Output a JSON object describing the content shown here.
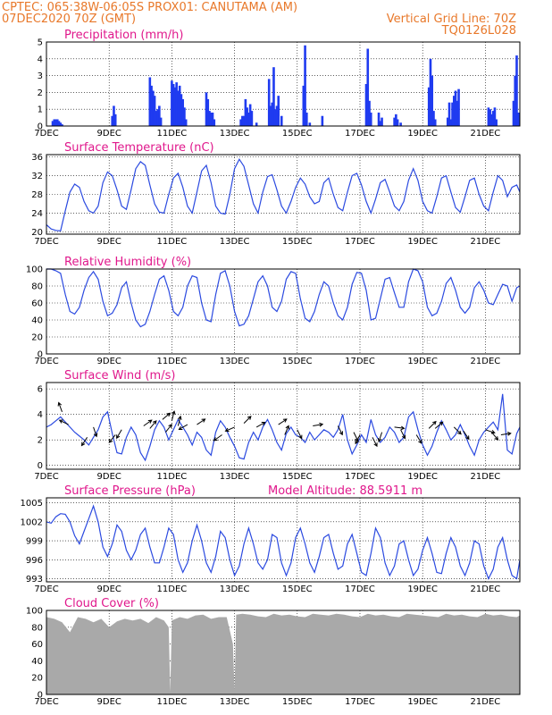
{
  "header": {
    "line1_left": "CPTEC:   065:38W-06:05S   PROX01: CANUTAMA (AM)",
    "line2_left": "07DEC2020 70Z (GMT)",
    "line2_right": "Vertical Grid Line: 70Z",
    "line3_right": "TQ0126L028",
    "model_altitude": "Model Altitude: 88.5911 m"
  },
  "x_axis": {
    "ticks": [
      "7DEC",
      "9DEC",
      "11DEC",
      "13DEC",
      "15DEC",
      "17DEC",
      "19DEC",
      "21DEC"
    ],
    "tick_days": [
      0,
      2,
      4,
      6,
      8,
      10,
      12,
      14
    ],
    "range_days": [
      0,
      15.1
    ]
  },
  "colors": {
    "header": "#e8782a",
    "panel_title": "#e0188c",
    "series": "#2b4ae0",
    "bars": "#1f3bf0",
    "cloud": "#a9a9a9"
  },
  "chart_data": [
    {
      "type": "bar",
      "title": "Precipitation (mm/h)",
      "ylim": [
        0,
        5
      ],
      "yticks": [
        0,
        1,
        2,
        3,
        4,
        5
      ],
      "grid": true,
      "x_days": [
        0.2,
        0.25,
        0.3,
        0.35,
        0.4,
        0.45,
        0.5,
        2.1,
        2.15,
        2.2,
        3.3,
        3.35,
        3.4,
        3.45,
        3.5,
        3.55,
        3.6,
        3.65,
        4.0,
        4.05,
        4.1,
        4.15,
        4.2,
        4.25,
        4.3,
        4.35,
        4.4,
        4.45,
        5.1,
        5.15,
        5.2,
        5.25,
        5.3,
        5.35,
        6.2,
        6.25,
        6.3,
        6.35,
        6.4,
        6.45,
        6.5,
        6.55,
        6.7,
        7.1,
        7.15,
        7.2,
        7.25,
        7.3,
        7.35,
        7.4,
        7.5,
        8.2,
        8.25,
        8.3,
        8.4,
        8.8,
        10.2,
        10.25,
        10.3,
        10.35,
        10.6,
        10.65,
        10.7,
        11.1,
        11.15,
        11.2,
        11.3,
        12.2,
        12.25,
        12.3,
        12.35,
        12.4,
        12.8,
        12.85,
        12.9,
        12.95,
        13.0,
        13.05,
        13.1,
        13.15,
        14.1,
        14.15,
        14.2,
        14.25,
        14.3,
        14.35,
        14.9,
        14.95,
        15.0,
        15.05
      ],
      "values": [
        0.3,
        0.4,
        0.4,
        0.4,
        0.3,
        0.2,
        0.1,
        0.6,
        1.2,
        0.7,
        2.9,
        2.4,
        2.1,
        1.8,
        0.9,
        1.0,
        1.2,
        0.5,
        2.7,
        2.5,
        2.3,
        2.6,
        2.1,
        2.4,
        1.9,
        1.6,
        1.1,
        0.4,
        2.0,
        1.6,
        0.9,
        0.8,
        0.8,
        0.4,
        0.4,
        0.6,
        0.6,
        1.6,
        1.1,
        0.8,
        1.3,
        0.9,
        0.2,
        2.8,
        1.2,
        1.4,
        3.5,
        1.0,
        1.2,
        1.8,
        0.6,
        2.4,
        4.8,
        0.8,
        0.2,
        0.6,
        2.5,
        4.6,
        1.5,
        0.8,
        0.8,
        0.3,
        0.5,
        0.5,
        0.7,
        0.4,
        0.2,
        2.3,
        4.0,
        3.0,
        0.9,
        0.4,
        0.5,
        1.4,
        0.4,
        1.4,
        1.8,
        2.1,
        1.5,
        2.2,
        1.1,
        1.0,
        0.7,
        0.9,
        1.1,
        0.4,
        1.5,
        3.0,
        4.2,
        0.8
      ]
    },
    {
      "type": "line",
      "title": "Surface Temperature (nC)",
      "ylim": [
        19.5,
        36.5
      ],
      "yticks": [
        20,
        24,
        28,
        32,
        36
      ],
      "grid": true,
      "x": [
        0,
        0.15,
        0.3,
        0.45,
        0.6,
        0.75,
        0.9,
        1.05,
        1.2,
        1.35,
        1.5,
        1.65,
        1.8,
        1.95,
        2.1,
        2.25,
        2.4,
        2.55,
        2.7,
        2.85,
        3.0,
        3.15,
        3.3,
        3.45,
        3.6,
        3.75,
        3.9,
        4.05,
        4.2,
        4.35,
        4.5,
        4.65,
        4.8,
        4.95,
        5.1,
        5.25,
        5.4,
        5.55,
        5.7,
        5.85,
        6.0,
        6.15,
        6.3,
        6.45,
        6.6,
        6.75,
        6.9,
        7.05,
        7.2,
        7.35,
        7.5,
        7.65,
        7.8,
        7.95,
        8.1,
        8.25,
        8.4,
        8.55,
        8.7,
        8.85,
        9.0,
        9.15,
        9.3,
        9.45,
        9.6,
        9.75,
        9.9,
        10.05,
        10.2,
        10.35,
        10.5,
        10.65,
        10.8,
        10.95,
        11.1,
        11.25,
        11.4,
        11.55,
        11.7,
        11.85,
        12.0,
        12.15,
        12.3,
        12.45,
        12.6,
        12.75,
        12.9,
        13.05,
        13.2,
        13.35,
        13.5,
        13.65,
        13.8,
        13.95,
        14.1,
        14.25,
        14.4,
        14.55,
        14.7,
        14.85,
        15.0,
        15.1
      ],
      "values": [
        21.5,
        20.6,
        20.3,
        20.2,
        24.5,
        28.5,
        30.2,
        29.5,
        26.5,
        24.5,
        24.0,
        25.5,
        30.5,
        32.8,
        32.0,
        29.0,
        25.5,
        24.8,
        29.0,
        33.5,
        35.0,
        34.2,
        30.0,
        26.0,
        24.2,
        24.0,
        28.0,
        31.5,
        32.5,
        29.5,
        25.5,
        24.0,
        28.5,
        33.0,
        34.2,
        30.5,
        25.5,
        24.0,
        23.8,
        28.0,
        33.5,
        35.5,
        34.0,
        30.0,
        26.0,
        24.0,
        28.5,
        31.8,
        32.2,
        29.0,
        25.5,
        24.0,
        26.5,
        29.5,
        31.5,
        30.2,
        27.5,
        26.0,
        26.5,
        30.5,
        31.5,
        28.0,
        25.2,
        24.5,
        28.5,
        32.0,
        32.5,
        30.0,
        26.5,
        24.0,
        27.0,
        30.5,
        31.2,
        28.5,
        25.5,
        24.5,
        26.5,
        31.0,
        33.5,
        31.0,
        26.5,
        24.5,
        24.0,
        27.5,
        31.5,
        32.0,
        28.5,
        25.2,
        24.2,
        27.5,
        31.0,
        31.5,
        28.0,
        25.5,
        24.5,
        28.5,
        32.0,
        31.0,
        27.5,
        29.5,
        30.0,
        28.5
      ]
    },
    {
      "type": "line",
      "title": "Relative Humidity (%)",
      "ylim": [
        0,
        100
      ],
      "yticks": [
        0,
        20,
        40,
        60,
        80,
        100
      ],
      "grid": true,
      "x": [
        0,
        0.15,
        0.3,
        0.45,
        0.6,
        0.75,
        0.9,
        1.05,
        1.2,
        1.35,
        1.5,
        1.65,
        1.8,
        1.95,
        2.1,
        2.25,
        2.4,
        2.55,
        2.7,
        2.85,
        3.0,
        3.15,
        3.3,
        3.45,
        3.6,
        3.75,
        3.9,
        4.05,
        4.2,
        4.35,
        4.5,
        4.65,
        4.8,
        4.95,
        5.1,
        5.25,
        5.4,
        5.55,
        5.7,
        5.85,
        6.0,
        6.15,
        6.3,
        6.45,
        6.6,
        6.75,
        6.9,
        7.05,
        7.2,
        7.35,
        7.5,
        7.65,
        7.8,
        7.95,
        8.1,
        8.25,
        8.4,
        8.55,
        8.7,
        8.85,
        9.0,
        9.15,
        9.3,
        9.45,
        9.6,
        9.75,
        9.9,
        10.05,
        10.2,
        10.35,
        10.5,
        10.65,
        10.8,
        10.95,
        11.1,
        11.25,
        11.4,
        11.55,
        11.7,
        11.85,
        12.0,
        12.15,
        12.3,
        12.45,
        12.6,
        12.75,
        12.9,
        13.05,
        13.2,
        13.35,
        13.5,
        13.65,
        13.8,
        13.95,
        14.1,
        14.25,
        14.4,
        14.55,
        14.7,
        14.85,
        15.0,
        15.1
      ],
      "values": [
        100,
        100,
        98,
        95,
        70,
        50,
        47,
        55,
        75,
        90,
        97,
        88,
        62,
        45,
        48,
        58,
        78,
        85,
        60,
        40,
        32,
        35,
        50,
        70,
        88,
        92,
        75,
        50,
        45,
        55,
        80,
        92,
        90,
        60,
        40,
        38,
        70,
        95,
        98,
        80,
        50,
        33,
        35,
        45,
        65,
        85,
        92,
        80,
        55,
        50,
        62,
        88,
        97,
        95,
        65,
        42,
        38,
        50,
        70,
        85,
        80,
        60,
        45,
        40,
        55,
        82,
        96,
        95,
        75,
        40,
        42,
        65,
        88,
        90,
        72,
        55,
        55,
        85,
        100,
        98,
        85,
        55,
        45,
        48,
        62,
        83,
        90,
        75,
        55,
        48,
        55,
        78,
        85,
        75,
        60,
        58,
        70,
        82,
        80,
        62,
        78,
        80
      ]
    },
    {
      "type": "line",
      "title": "Surface Wind (m/s)",
      "ylim": [
        -0.3,
        6.5
      ],
      "yticks": [
        0,
        2,
        4,
        6
      ],
      "grid": true,
      "x": [
        0,
        0.15,
        0.3,
        0.45,
        0.6,
        0.75,
        0.9,
        1.05,
        1.2,
        1.35,
        1.5,
        1.65,
        1.8,
        1.95,
        2.1,
        2.25,
        2.4,
        2.55,
        2.7,
        2.85,
        3.0,
        3.15,
        3.3,
        3.45,
        3.6,
        3.75,
        3.9,
        4.05,
        4.2,
        4.35,
        4.5,
        4.65,
        4.8,
        4.95,
        5.1,
        5.25,
        5.4,
        5.55,
        5.7,
        5.85,
        6.0,
        6.15,
        6.3,
        6.45,
        6.6,
        6.75,
        6.9,
        7.05,
        7.2,
        7.35,
        7.5,
        7.65,
        7.8,
        7.95,
        8.1,
        8.25,
        8.4,
        8.55,
        8.7,
        8.85,
        9.0,
        9.15,
        9.3,
        9.45,
        9.6,
        9.75,
        9.9,
        10.05,
        10.2,
        10.35,
        10.5,
        10.65,
        10.8,
        10.95,
        11.1,
        11.25,
        11.4,
        11.55,
        11.7,
        11.85,
        12.0,
        12.15,
        12.3,
        12.45,
        12.6,
        12.75,
        12.9,
        13.05,
        13.2,
        13.35,
        13.5,
        13.65,
        13.8,
        13.95,
        14.1,
        14.25,
        14.4,
        14.55,
        14.7,
        14.85,
        15.0,
        15.1
      ],
      "values": [
        3.0,
        3.2,
        3.5,
        3.8,
        3.4,
        3.0,
        2.6,
        2.3,
        2.0,
        1.6,
        2.2,
        2.8,
        3.8,
        4.2,
        2.5,
        1.0,
        0.9,
        2.2,
        3.0,
        2.4,
        1.0,
        0.4,
        1.5,
        2.8,
        3.5,
        3.0,
        2.0,
        2.8,
        3.6,
        3.0,
        2.4,
        1.6,
        2.6,
        2.2,
        1.2,
        0.8,
        2.6,
        3.5,
        3.0,
        2.2,
        1.5,
        0.6,
        0.5,
        1.8,
        2.6,
        2.0,
        3.0,
        3.6,
        2.8,
        1.8,
        1.2,
        2.5,
        3.0,
        2.4,
        2.2,
        1.8,
        2.6,
        2.0,
        2.4,
        2.8,
        2.6,
        2.2,
        2.8,
        4.0,
        2.0,
        0.9,
        1.6,
        2.4,
        1.8,
        3.6,
        2.4,
        1.8,
        2.2,
        3.0,
        2.6,
        1.8,
        2.2,
        3.8,
        4.2,
        2.8,
        1.6,
        0.8,
        1.5,
        2.6,
        3.5,
        2.8,
        2.0,
        2.4,
        3.2,
        2.4,
        1.5,
        0.8,
        2.0,
        2.6,
        3.0,
        3.4,
        2.8,
        5.6,
        1.2,
        0.9,
        2.5,
        3.0
      ],
      "arrows_x": [
        0.5,
        0.7,
        1.3,
        1.5,
        2.2,
        2.4,
        3.1,
        3.3,
        3.7,
        3.8,
        4.0,
        4.2,
        4.5,
        4.8,
        5.6,
        6.0,
        6.3,
        6.7,
        7.4,
        7.6,
        8.0,
        8.5,
        9.3,
        9.8,
        10.0,
        10.4,
        10.7,
        11.1,
        11.3,
        11.8,
        12.2,
        12.4,
        13.0,
        13.3,
        14.0,
        14.2,
        14.5
      ],
      "arrows_y": [
        4.2,
        3.2,
        2.2,
        3.0,
        2.4,
        2.8,
        3.1,
        2.9,
        3.6,
        2.6,
        3.5,
        3.1,
        3.2,
        3.2,
        2.4,
        3.0,
        3.3,
        3.0,
        3.2,
        2.4,
        2.8,
        3.1,
        3.1,
        2.6,
        2.4,
        2.2,
        2.6,
        3.0,
        2.8,
        2.4,
        2.9,
        2.9,
        3.0,
        2.7,
        2.8,
        2.6,
        2.4
      ],
      "arrows_u": [
        -0.3,
        -0.8,
        -0.4,
        0.2,
        -0.4,
        -0.3,
        0.7,
        0.5,
        0.6,
        0.4,
        0.2,
        0.2,
        -0.7,
        0.6,
        -0.7,
        -0.7,
        0.6,
        0.7,
        0.6,
        0.3,
        0.3,
        0.6,
        0.3,
        0.3,
        -0.3,
        0.3,
        -0.2,
        0.8,
        0.3,
        0.3,
        0.6,
        0.6,
        0.5,
        0.4,
        0.6,
        0.5,
        0.7
      ],
      "arrows_v": [
        0.8,
        0.4,
        -0.6,
        -0.6,
        -0.5,
        -0.5,
        0.5,
        0.6,
        0.5,
        0.5,
        0.8,
        0.8,
        -0.4,
        0.4,
        -0.5,
        -0.3,
        0.6,
        0.4,
        0.4,
        0.7,
        -0.6,
        0.1,
        -0.6,
        -0.6,
        -0.6,
        -0.6,
        -0.6,
        -0.1,
        -0.6,
        -0.5,
        0.6,
        0.5,
        -0.5,
        -0.6,
        -0.2,
        -0.6,
        0.1
      ]
    },
    {
      "type": "line",
      "title": "Surface Pressure (hPa)",
      "ylim": [
        992.5,
        1005.8
      ],
      "yticks": [
        993,
        996,
        999,
        1002,
        1005
      ],
      "ytick_labels": [
        "993",
        "996",
        "999",
        "1002",
        "1005"
      ],
      "grid": true,
      "x": [
        0,
        0.15,
        0.3,
        0.45,
        0.6,
        0.75,
        0.9,
        1.05,
        1.2,
        1.35,
        1.5,
        1.65,
        1.8,
        1.95,
        2.1,
        2.25,
        2.4,
        2.55,
        2.7,
        2.85,
        3.0,
        3.15,
        3.3,
        3.45,
        3.6,
        3.75,
        3.9,
        4.05,
        4.2,
        4.35,
        4.5,
        4.65,
        4.8,
        4.95,
        5.1,
        5.25,
        5.4,
        5.55,
        5.7,
        5.85,
        6.0,
        6.15,
        6.3,
        6.45,
        6.6,
        6.75,
        6.9,
        7.05,
        7.2,
        7.35,
        7.5,
        7.65,
        7.8,
        7.95,
        8.1,
        8.25,
        8.4,
        8.55,
        8.7,
        8.85,
        9.0,
        9.15,
        9.3,
        9.45,
        9.6,
        9.75,
        9.9,
        10.05,
        10.2,
        10.35,
        10.5,
        10.65,
        10.8,
        10.95,
        11.1,
        11.25,
        11.4,
        11.55,
        11.7,
        11.85,
        12.0,
        12.15,
        12.3,
        12.45,
        12.6,
        12.75,
        12.9,
        13.05,
        13.2,
        13.35,
        13.5,
        13.65,
        13.8,
        13.95,
        14.1,
        14.25,
        14.4,
        14.55,
        14.7,
        14.85,
        15.0,
        15.1
      ],
      "values": [
        1002.0,
        1001.8,
        1002.8,
        1003.3,
        1003.2,
        1002.0,
        999.8,
        998.5,
        1000.5,
        1002.5,
        1004.5,
        1002.0,
        998.0,
        996.5,
        998.5,
        1001.5,
        1000.5,
        997.5,
        996.0,
        997.5,
        1000.0,
        1001.0,
        998.0,
        995.5,
        995.5,
        998.0,
        1001.0,
        1000.0,
        996.0,
        994.0,
        995.5,
        999.0,
        1001.5,
        999.0,
        995.5,
        994.0,
        996.5,
        1000.5,
        999.5,
        996.0,
        993.5,
        995.0,
        998.5,
        1001.0,
        998.5,
        995.5,
        994.5,
        996.0,
        1000.0,
        999.5,
        995.5,
        993.5,
        995.5,
        999.5,
        1001.0,
        998.5,
        995.5,
        994.0,
        996.5,
        999.5,
        1000.0,
        997.0,
        994.5,
        995.0,
        998.5,
        1000.0,
        997.0,
        994.0,
        993.5,
        997.0,
        1001.0,
        999.5,
        995.5,
        993.5,
        995.0,
        998.5,
        999.0,
        996.0,
        993.5,
        994.5,
        997.5,
        999.5,
        997.0,
        994.0,
        993.8,
        997.0,
        999.5,
        998.0,
        995.0,
        993.5,
        995.5,
        999.0,
        998.5,
        995.0,
        993.0,
        994.5,
        998.0,
        999.5,
        996.0,
        993.5,
        993.0,
        996.0
      ]
    },
    {
      "type": "area",
      "title": "Cloud Cover (%)",
      "ylim": [
        0,
        100
      ],
      "yticks": [
        0,
        20,
        40,
        60,
        80,
        100
      ],
      "grid": true,
      "x": [
        0,
        0.25,
        0.5,
        0.75,
        1.0,
        1.25,
        1.5,
        1.75,
        2.0,
        2.25,
        2.5,
        2.75,
        3.0,
        3.25,
        3.5,
        3.75,
        3.9,
        3.95,
        4.0,
        4.25,
        4.5,
        4.75,
        5.0,
        5.25,
        5.5,
        5.75,
        5.95,
        6.0,
        6.05,
        6.25,
        6.5,
        6.75,
        7.0,
        7.25,
        7.5,
        7.75,
        8.0,
        8.25,
        8.5,
        8.75,
        9.0,
        9.25,
        9.5,
        9.75,
        10.0,
        10.25,
        10.5,
        10.75,
        11.0,
        11.25,
        11.5,
        11.75,
        12.0,
        12.25,
        12.5,
        12.75,
        13.0,
        13.25,
        13.5,
        13.75,
        14.0,
        14.25,
        14.5,
        14.75,
        15.0,
        15.1
      ],
      "values": [
        92,
        90,
        86,
        74,
        92,
        90,
        86,
        90,
        80,
        87,
        90,
        88,
        90,
        85,
        92,
        88,
        80,
        3,
        88,
        92,
        90,
        94,
        95,
        90,
        92,
        92,
        60,
        5,
        95,
        96,
        95,
        93,
        92,
        96,
        94,
        95,
        93,
        92,
        96,
        95,
        94,
        96,
        95,
        93,
        92,
        96,
        94,
        95,
        93,
        92,
        96,
        95,
        94,
        93,
        92,
        96,
        94,
        95,
        93,
        92,
        96,
        94,
        95,
        93,
        92,
        94
      ]
    }
  ]
}
